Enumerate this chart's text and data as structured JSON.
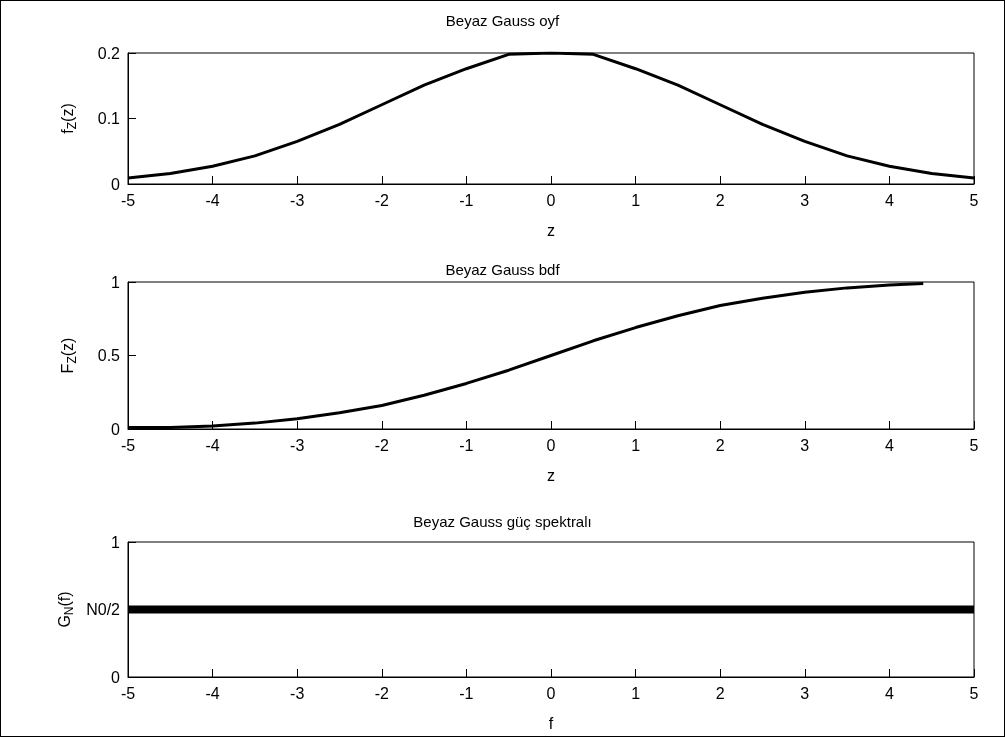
{
  "chart_data": [
    {
      "type": "line",
      "title": "Beyaz Gauss oyf",
      "xlabel": "z",
      "ylabel": "f$_{Z}$(z)",
      "x": [
        -5,
        -4.5,
        -4,
        -3.5,
        -3,
        -2.5,
        -2,
        -1.5,
        -1,
        -0.5,
        0,
        0.5,
        1,
        1.5,
        2,
        2.5,
        3,
        3.5,
        4,
        4.5,
        5
      ],
      "series": [
        {
          "color": "#000000",
          "values": [
            0.009,
            0.016,
            0.027,
            0.043,
            0.065,
            0.091,
            0.121,
            0.151,
            0.176,
            0.198,
            0.2,
            0.198,
            0.176,
            0.151,
            0.121,
            0.091,
            0.065,
            0.043,
            0.027,
            0.016,
            0.009
          ]
        }
      ],
      "xlim": [
        -5,
        5
      ],
      "xticks": [
        -5,
        -4,
        -3,
        -2,
        -1,
        0,
        1,
        2,
        3,
        4,
        5
      ],
      "ylim": [
        0,
        0.2
      ],
      "yticks": [
        0,
        0.1,
        0.2
      ],
      "grid": false
    },
    {
      "type": "line",
      "title": "Beyaz Gauss bdf",
      "xlabel": "z",
      "ylabel": "F$_{Z}$(z)",
      "x": [
        -5,
        -4.5,
        -4,
        -3.5,
        -3,
        -2.5,
        -2,
        -1.5,
        -1,
        -0.5,
        0,
        0.5,
        1,
        1.5,
        2,
        2.5,
        3,
        3.5,
        4,
        4.4
      ],
      "series": [
        {
          "color": "#000000",
          "values": [
            0.01,
            0.01,
            0.02,
            0.04,
            0.07,
            0.11,
            0.16,
            0.23,
            0.31,
            0.4,
            0.5,
            0.6,
            0.69,
            0.77,
            0.84,
            0.89,
            0.93,
            0.96,
            0.98,
            0.99
          ]
        }
      ],
      "xlim": [
        -5,
        5
      ],
      "xticks": [
        -5,
        -4,
        -3,
        -2,
        -1,
        0,
        1,
        2,
        3,
        4,
        5
      ],
      "ylim": [
        0,
        1
      ],
      "yticks": [
        0,
        0.5,
        1
      ],
      "grid": false
    },
    {
      "type": "line",
      "title": "Beyaz Gauss güç spektralı",
      "xlabel": "f",
      "ylabel": "G$_{N}$(f)",
      "x": [
        -5,
        5
      ],
      "series": [
        {
          "color": "#000000",
          "values": [
            0.5,
            0.5
          ]
        }
      ],
      "xlim": [
        -5,
        5
      ],
      "xticks": [
        -5,
        -4,
        -3,
        -2,
        -1,
        0,
        1,
        2,
        3,
        4,
        5
      ],
      "ylim": [
        0,
        1
      ],
      "yticks": [
        0,
        {
          "value": 0.5,
          "label": "N0/2"
        },
        1
      ],
      "grid": false
    }
  ]
}
